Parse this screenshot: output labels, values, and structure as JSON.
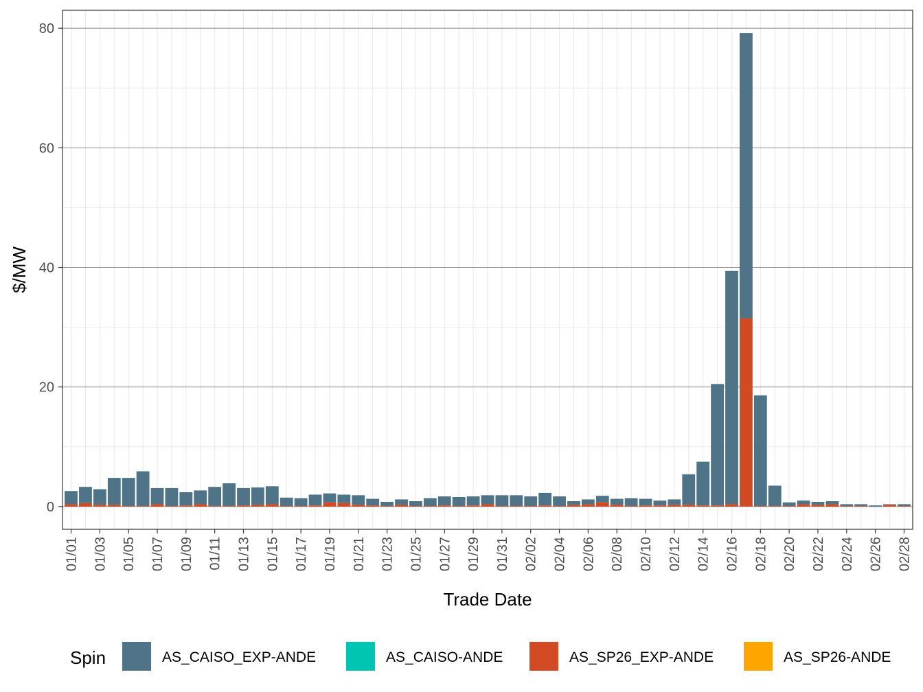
{
  "chart_data": {
    "type": "bar",
    "stacked": true,
    "xlabel": "Trade Date",
    "ylabel": "$/MW",
    "ylim": [
      -3.8,
      83
    ],
    "yticks": [
      0,
      20,
      40,
      60,
      80
    ],
    "x_tick_labels": [
      "01/01",
      "01/03",
      "01/05",
      "01/07",
      "01/09",
      "01/11",
      "01/13",
      "01/15",
      "01/17",
      "01/19",
      "01/21",
      "01/23",
      "01/25",
      "01/27",
      "01/29",
      "01/31",
      "02/02",
      "02/04",
      "02/06",
      "02/08",
      "02/10",
      "02/12",
      "02/14",
      "02/16",
      "02/18",
      "02/20",
      "02/22",
      "02/24",
      "02/26",
      "02/28"
    ],
    "categories": [
      "01/01",
      "01/02",
      "01/03",
      "01/04",
      "01/05",
      "01/06",
      "01/07",
      "01/08",
      "01/09",
      "01/10",
      "01/11",
      "01/12",
      "01/13",
      "01/14",
      "01/15",
      "01/16",
      "01/17",
      "01/18",
      "01/19",
      "01/20",
      "01/21",
      "01/22",
      "01/23",
      "01/24",
      "01/25",
      "01/26",
      "01/27",
      "01/28",
      "01/29",
      "01/30",
      "01/31",
      "02/01",
      "02/02",
      "02/03",
      "02/04",
      "02/05",
      "02/06",
      "02/07",
      "02/08",
      "02/09",
      "02/10",
      "02/11",
      "02/12",
      "02/13",
      "02/14",
      "02/15",
      "02/16",
      "02/17",
      "02/18",
      "02/19",
      "02/20",
      "02/21",
      "02/22",
      "02/23",
      "02/24",
      "02/25",
      "02/26",
      "02/27",
      "02/28"
    ],
    "legend": {
      "title": "Spin",
      "position": "bottom"
    },
    "grid": true,
    "series": [
      {
        "name": "AS_SP26_EXP-ANDE",
        "color": "#d24a23",
        "values": [
          0.4,
          0.6,
          0.3,
          0.3,
          0.1,
          0.1,
          0.4,
          0.1,
          0.2,
          0.4,
          0.1,
          0.1,
          0.2,
          0.3,
          0.4,
          0.1,
          0.1,
          0.2,
          0.7,
          0.6,
          0.3,
          0.2,
          0.1,
          0.3,
          0.1,
          0.1,
          0.2,
          0.1,
          0.2,
          0.4,
          0.1,
          0.1,
          0.1,
          0.2,
          0.1,
          0.3,
          0.4,
          0.7,
          0.3,
          0.1,
          0.2,
          0.2,
          0.3,
          0.3,
          0.2,
          0.2,
          0.4,
          31.5,
          0.1,
          0.1,
          0.1,
          0.4,
          0.3,
          0.4,
          0.1,
          0.1,
          0.0,
          0.3,
          0.1
        ]
      },
      {
        "name": "AS_CAISO_EXP-ANDE",
        "color": "#4f7487",
        "values": [
          2.2,
          2.7,
          2.6,
          4.5,
          4.7,
          5.8,
          2.7,
          3.0,
          2.2,
          2.3,
          3.2,
          3.8,
          2.9,
          2.9,
          3.0,
          1.4,
          1.3,
          1.8,
          1.5,
          1.4,
          1.6,
          1.1,
          0.7,
          0.9,
          0.8,
          1.3,
          1.5,
          1.5,
          1.5,
          1.5,
          1.8,
          1.8,
          1.6,
          2.1,
          1.6,
          0.6,
          0.8,
          1.1,
          1.0,
          1.3,
          1.1,
          0.8,
          0.9,
          5.1,
          7.3,
          20.3,
          39.0,
          47.7,
          18.5,
          3.4,
          0.6,
          0.6,
          0.5,
          0.5,
          0.3,
          0.3,
          0.2,
          0.1,
          0.3
        ]
      },
      {
        "name": "AS_CAISO-ANDE",
        "color": "#00c5b2",
        "values": [
          0,
          0,
          0,
          0,
          0,
          0,
          0,
          0,
          0,
          0,
          0,
          0,
          0,
          0,
          0,
          0,
          0,
          0,
          0,
          0,
          0,
          0,
          0,
          0,
          0,
          0,
          0,
          0,
          0,
          0,
          0,
          0,
          0,
          0,
          0,
          0,
          0,
          0,
          0,
          0,
          0,
          0,
          0,
          0,
          0,
          0,
          0,
          0,
          0,
          0,
          0,
          0,
          0,
          0,
          0,
          0,
          0,
          0,
          0
        ]
      },
      {
        "name": "AS_SP26-ANDE",
        "color": "#ffa500",
        "values": [
          0,
          0,
          0,
          0,
          0,
          0,
          0,
          0,
          0,
          0,
          0,
          0,
          0,
          0,
          0,
          0,
          0,
          0,
          0,
          0,
          0,
          0,
          0,
          0,
          0,
          0,
          0,
          0,
          0,
          0,
          0,
          0,
          0,
          0,
          0,
          0,
          0,
          0,
          0,
          0,
          0,
          0,
          0,
          0,
          0,
          0,
          0,
          0,
          0,
          0,
          0,
          0,
          0,
          0,
          0,
          0,
          0,
          0,
          0
        ]
      }
    ],
    "legend_order": [
      "AS_CAISO_EXP-ANDE",
      "AS_CAISO-ANDE",
      "AS_SP26_EXP-ANDE",
      "AS_SP26-ANDE"
    ]
  }
}
